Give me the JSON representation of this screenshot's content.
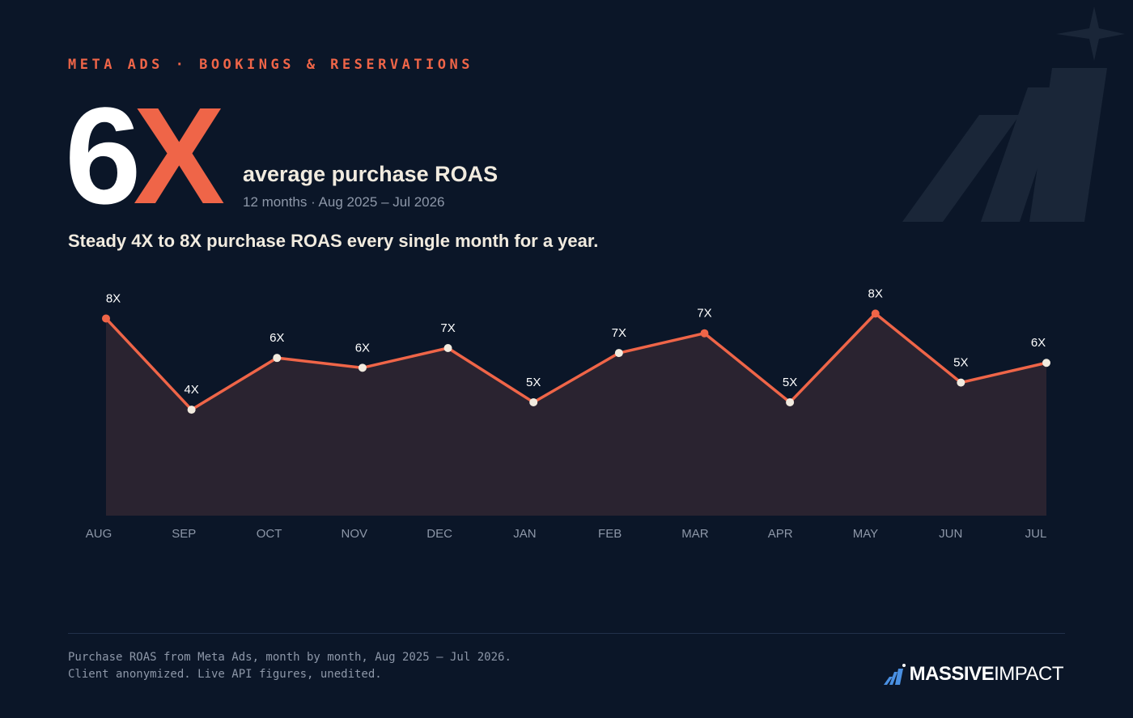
{
  "header": {
    "eyebrow": "META ADS · BOOKINGS & RESERVATIONS",
    "headline_number": "6",
    "headline_unit": "X",
    "headline_caption": "average purchase ROAS",
    "period": "12 months · Aug 2025 – Jul 2026",
    "summary": "Steady 4X to 8X purchase ROAS every single month for a year."
  },
  "chart_data": {
    "type": "line",
    "categories": [
      "AUG",
      "SEP",
      "OCT",
      "NOV",
      "DEC",
      "JAN",
      "FEB",
      "MAR",
      "APR",
      "MAY",
      "JUN",
      "JUL"
    ],
    "values": [
      8.0,
      4.3,
      6.4,
      6.0,
      6.8,
      4.6,
      6.6,
      7.4,
      4.6,
      8.2,
      5.4,
      6.2
    ],
    "value_labels": [
      "8X",
      "4X",
      "6X",
      "6X",
      "7X",
      "5X",
      "7X",
      "7X",
      "5X",
      "8X",
      "5X",
      "6X"
    ],
    "color": "#ef6548",
    "area_color": "#2a2330",
    "marker_colors": [
      "#ef6548",
      "#f1ebdf",
      "#f1ebdf",
      "#f1ebdf",
      "#f1ebdf",
      "#f1ebdf",
      "#f1ebdf",
      "#ef6548",
      "#f1ebdf",
      "#ef6548",
      "#f1ebdf",
      "#f1ebdf"
    ],
    "ylim": [
      0,
      9
    ],
    "grid": false
  },
  "footer": {
    "note_lines": [
      "Purchase ROAS from Meta Ads, month by month, Aug 2025 – Jul 2026.",
      "Client anonymized. Live API figures, unedited."
    ],
    "brand_bold": "MASSIVE",
    "brand_light": "IMPACT"
  }
}
